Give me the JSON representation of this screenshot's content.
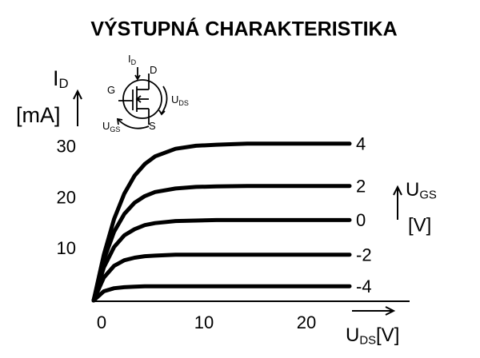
{
  "chart_data": {
    "type": "line",
    "title": "VÝSTUPNÁ CHARAKTERISTIKA",
    "ylabel": {
      "symbol": "I",
      "subscript": "D",
      "unit": "[mA]"
    },
    "xlabel": {
      "symbol": "U",
      "subscript": "DS",
      "unit": "[V]"
    },
    "legend_title": {
      "symbol": "U",
      "subscript": "GS",
      "unit": "[V]"
    },
    "inset_labels": [
      {
        "symbol": "I",
        "subscript": "D"
      },
      {
        "symbol": "D",
        "subscript": ""
      },
      {
        "symbol": "G",
        "subscript": ""
      },
      {
        "symbol": "S",
        "subscript": ""
      },
      {
        "symbol": "U",
        "subscript": "DS"
      },
      {
        "symbol": "U",
        "subscript": "GS"
      }
    ],
    "x": [
      0,
      1,
      2,
      3,
      4,
      5,
      6,
      8,
      10,
      12,
      15,
      20,
      25
    ],
    "series": [
      {
        "name": "4",
        "color": "#000000",
        "values": [
          0,
          9,
          16,
          21,
          24.5,
          26.8,
          28.3,
          29.8,
          30.4,
          30.6,
          30.8,
          30.8,
          30.8
        ]
      },
      {
        "name": "2",
        "color": "#000000",
        "values": [
          0,
          8,
          13.5,
          17,
          19.2,
          20.5,
          21.3,
          22,
          22.3,
          22.4,
          22.5,
          22.5,
          22.5
        ]
      },
      {
        "name": "0",
        "color": "#000000",
        "values": [
          0,
          6.5,
          10.5,
          12.8,
          14,
          14.8,
          15.2,
          15.6,
          15.7,
          15.8,
          15.8,
          15.8,
          15.8
        ]
      },
      {
        "name": "-2",
        "color": "#000000",
        "values": [
          0,
          4.5,
          6.8,
          7.9,
          8.4,
          8.7,
          8.8,
          9,
          9,
          9,
          9,
          9,
          9
        ]
      },
      {
        "name": "-4",
        "color": "#000000",
        "values": [
          0,
          1.8,
          2.4,
          2.6,
          2.7,
          2.8,
          2.8,
          2.8,
          2.8,
          2.8,
          2.8,
          2.8,
          2.8
        ]
      }
    ],
    "xlim": [
      0,
      30
    ],
    "ylim": [
      0,
      30
    ],
    "xticks": [
      0,
      10,
      20
    ],
    "yticks": [
      10,
      20,
      30
    ],
    "grid": false
  }
}
